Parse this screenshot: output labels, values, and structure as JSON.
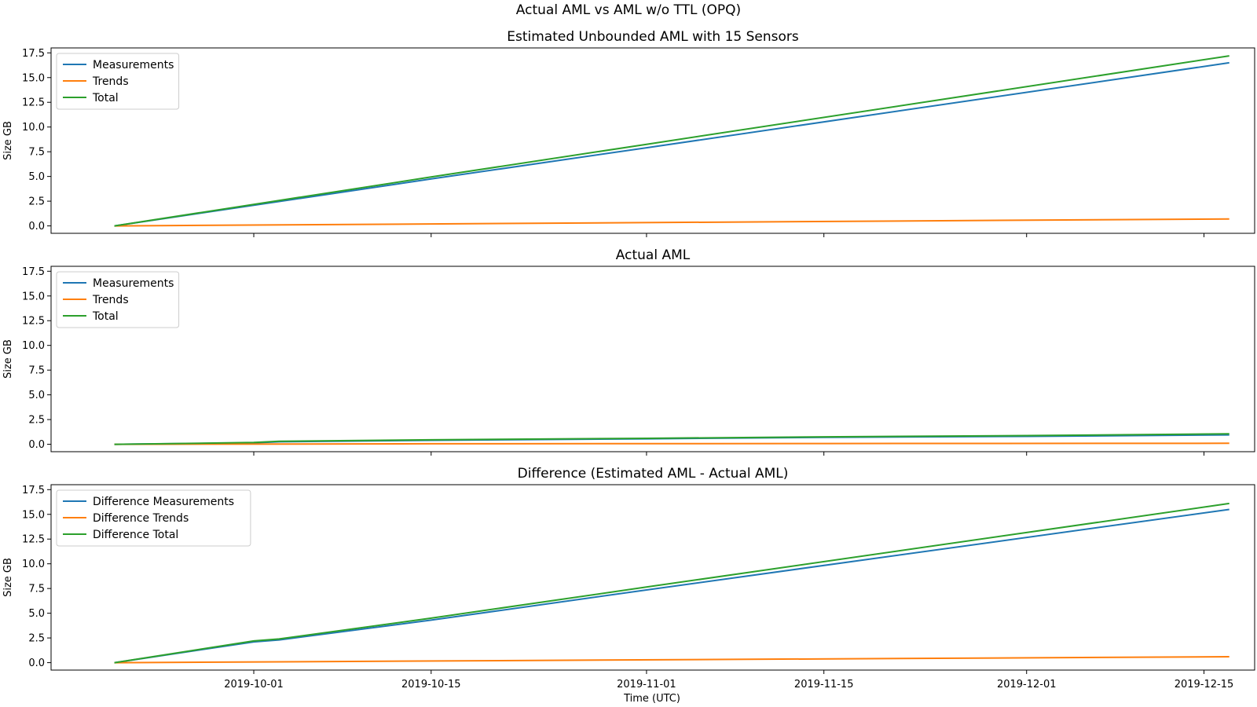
{
  "figure": {
    "suptitle": "Actual AML vs AML w/o TTL (OPQ)",
    "xlabel": "Time (UTC)",
    "colors": {
      "Measurements": "#1f77b4",
      "Trends": "#ff7f0e",
      "Total": "#2ca02c"
    }
  },
  "chart_data": [
    {
      "type": "line",
      "title": "Estimated Unbounded AML with 15 Sensors",
      "xlabel": "",
      "ylabel": "Size GB",
      "ylim": [
        -0.75,
        18.0
      ],
      "yticks": [
        0.0,
        2.5,
        5.0,
        7.5,
        10.0,
        12.5,
        15.0,
        17.5
      ],
      "xlim": [
        "2019-09-15",
        "2019-12-19"
      ],
      "xticks": [
        "2019-10-01",
        "2019-10-15",
        "2019-11-01",
        "2019-11-15",
        "2019-12-01",
        "2019-12-15"
      ],
      "show_xtick_labels": false,
      "legend": "upper-left",
      "grid": false,
      "series": [
        {
          "name": "Measurements",
          "color": "#1f77b4",
          "x": [
            "2019-09-20",
            "2019-10-15",
            "2019-11-01",
            "2019-12-17"
          ],
          "y": [
            0.0,
            4.75,
            7.9,
            16.5
          ]
        },
        {
          "name": "Trends",
          "color": "#ff7f0e",
          "x": [
            "2019-09-20",
            "2019-12-17"
          ],
          "y": [
            0.0,
            0.7
          ]
        },
        {
          "name": "Total",
          "color": "#2ca02c",
          "x": [
            "2019-09-20",
            "2019-10-15",
            "2019-11-01",
            "2019-12-17"
          ],
          "y": [
            0.0,
            4.95,
            8.25,
            17.2
          ]
        }
      ]
    },
    {
      "type": "line",
      "title": "Actual AML",
      "xlabel": "",
      "ylabel": "Size GB",
      "ylim": [
        -0.75,
        18.0
      ],
      "yticks": [
        0.0,
        2.5,
        5.0,
        7.5,
        10.0,
        12.5,
        15.0,
        17.5
      ],
      "xlim": [
        "2019-09-15",
        "2019-12-19"
      ],
      "xticks": [
        "2019-10-01",
        "2019-10-15",
        "2019-11-01",
        "2019-11-15",
        "2019-12-01",
        "2019-12-15"
      ],
      "show_xtick_labels": false,
      "legend": "upper-left",
      "grid": false,
      "series": [
        {
          "name": "Measurements",
          "color": "#1f77b4",
          "x": [
            "2019-09-20",
            "2019-09-22",
            "2019-10-01",
            "2019-10-03",
            "2019-10-15",
            "2019-11-01",
            "2019-11-15",
            "2019-12-01",
            "2019-12-17"
          ],
          "y": [
            0.0,
            0.02,
            0.15,
            0.25,
            0.4,
            0.55,
            0.7,
            0.8,
            0.95
          ]
        },
        {
          "name": "Trends",
          "color": "#ff7f0e",
          "x": [
            "2019-09-20",
            "2019-10-15",
            "2019-11-15",
            "2019-12-17"
          ],
          "y": [
            0.0,
            0.05,
            0.08,
            0.1
          ]
        },
        {
          "name": "Total",
          "color": "#2ca02c",
          "x": [
            "2019-09-20",
            "2019-09-22",
            "2019-10-01",
            "2019-10-03",
            "2019-10-15",
            "2019-11-01",
            "2019-11-15",
            "2019-12-01",
            "2019-12-17"
          ],
          "y": [
            0.0,
            0.03,
            0.18,
            0.3,
            0.45,
            0.6,
            0.75,
            0.88,
            1.05
          ]
        }
      ]
    },
    {
      "type": "line",
      "title": "Difference (Estimated AML - Actual AML)",
      "xlabel": "Time (UTC)",
      "ylabel": "Size GB",
      "ylim": [
        -0.75,
        18.0
      ],
      "yticks": [
        0.0,
        2.5,
        5.0,
        7.5,
        10.0,
        12.5,
        15.0,
        17.5
      ],
      "xlim": [
        "2019-09-15",
        "2019-12-19"
      ],
      "xticks": [
        "2019-10-01",
        "2019-10-15",
        "2019-11-01",
        "2019-11-15",
        "2019-12-01",
        "2019-12-15"
      ],
      "show_xtick_labels": true,
      "legend": "upper-left",
      "grid": false,
      "series": [
        {
          "name": "Difference Measurements",
          "color": "#1f77b4",
          "x": [
            "2019-09-20",
            "2019-10-01",
            "2019-10-03",
            "2019-10-15",
            "2019-11-01",
            "2019-12-17"
          ],
          "y": [
            0.0,
            2.1,
            2.3,
            4.3,
            7.35,
            15.5
          ]
        },
        {
          "name": "Difference Trends",
          "color": "#ff7f0e",
          "x": [
            "2019-09-20",
            "2019-12-17"
          ],
          "y": [
            0.0,
            0.6
          ]
        },
        {
          "name": "Difference Total",
          "color": "#2ca02c",
          "x": [
            "2019-09-20",
            "2019-10-01",
            "2019-10-03",
            "2019-10-15",
            "2019-11-01",
            "2019-12-17"
          ],
          "y": [
            0.0,
            2.2,
            2.4,
            4.5,
            7.65,
            16.1
          ]
        }
      ]
    }
  ]
}
